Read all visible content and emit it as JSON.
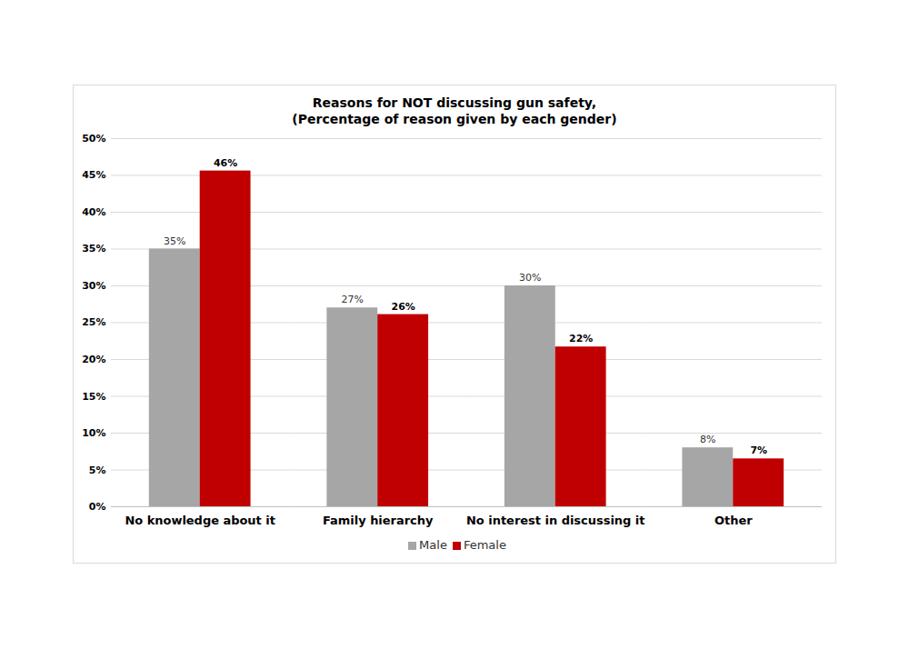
{
  "chart_data": {
    "type": "bar",
    "title": "Reasons for NOT discussing gun safety,",
    "subtitle": "(Percentage of reason given by each gender)",
    "categories": [
      "No knowledge about it",
      "Family hierarchy",
      "No interest in discussing it",
      "Other"
    ],
    "series": [
      {
        "name": "Male",
        "color": "#a6a6a6",
        "values": [
          35,
          27,
          30,
          8
        ],
        "value_labels": [
          "35%",
          "27%",
          "30%",
          "8%"
        ]
      },
      {
        "name": "Female",
        "color": "#c00000",
        "values": [
          45.6,
          26.1,
          21.7,
          6.5
        ],
        "value_labels": [
          "46%",
          "26%",
          "22%",
          "7%"
        ]
      }
    ],
    "ylim": [
      0,
      50
    ],
    "yticks": [
      {
        "value": 0,
        "label": "0%"
      },
      {
        "value": 5,
        "label": "5%"
      },
      {
        "value": 10,
        "label": "10%"
      },
      {
        "value": 15,
        "label": "15%"
      },
      {
        "value": 20,
        "label": "20%"
      },
      {
        "value": 25,
        "label": "25%"
      },
      {
        "value": 30,
        "label": "30%"
      },
      {
        "value": 35,
        "label": "35%"
      },
      {
        "value": 40,
        "label": "40%"
      },
      {
        "value": 45,
        "label": "45%"
      },
      {
        "value": 50,
        "label": "50%"
      }
    ],
    "grid": true,
    "legend": "bottom",
    "data_labels": true
  }
}
